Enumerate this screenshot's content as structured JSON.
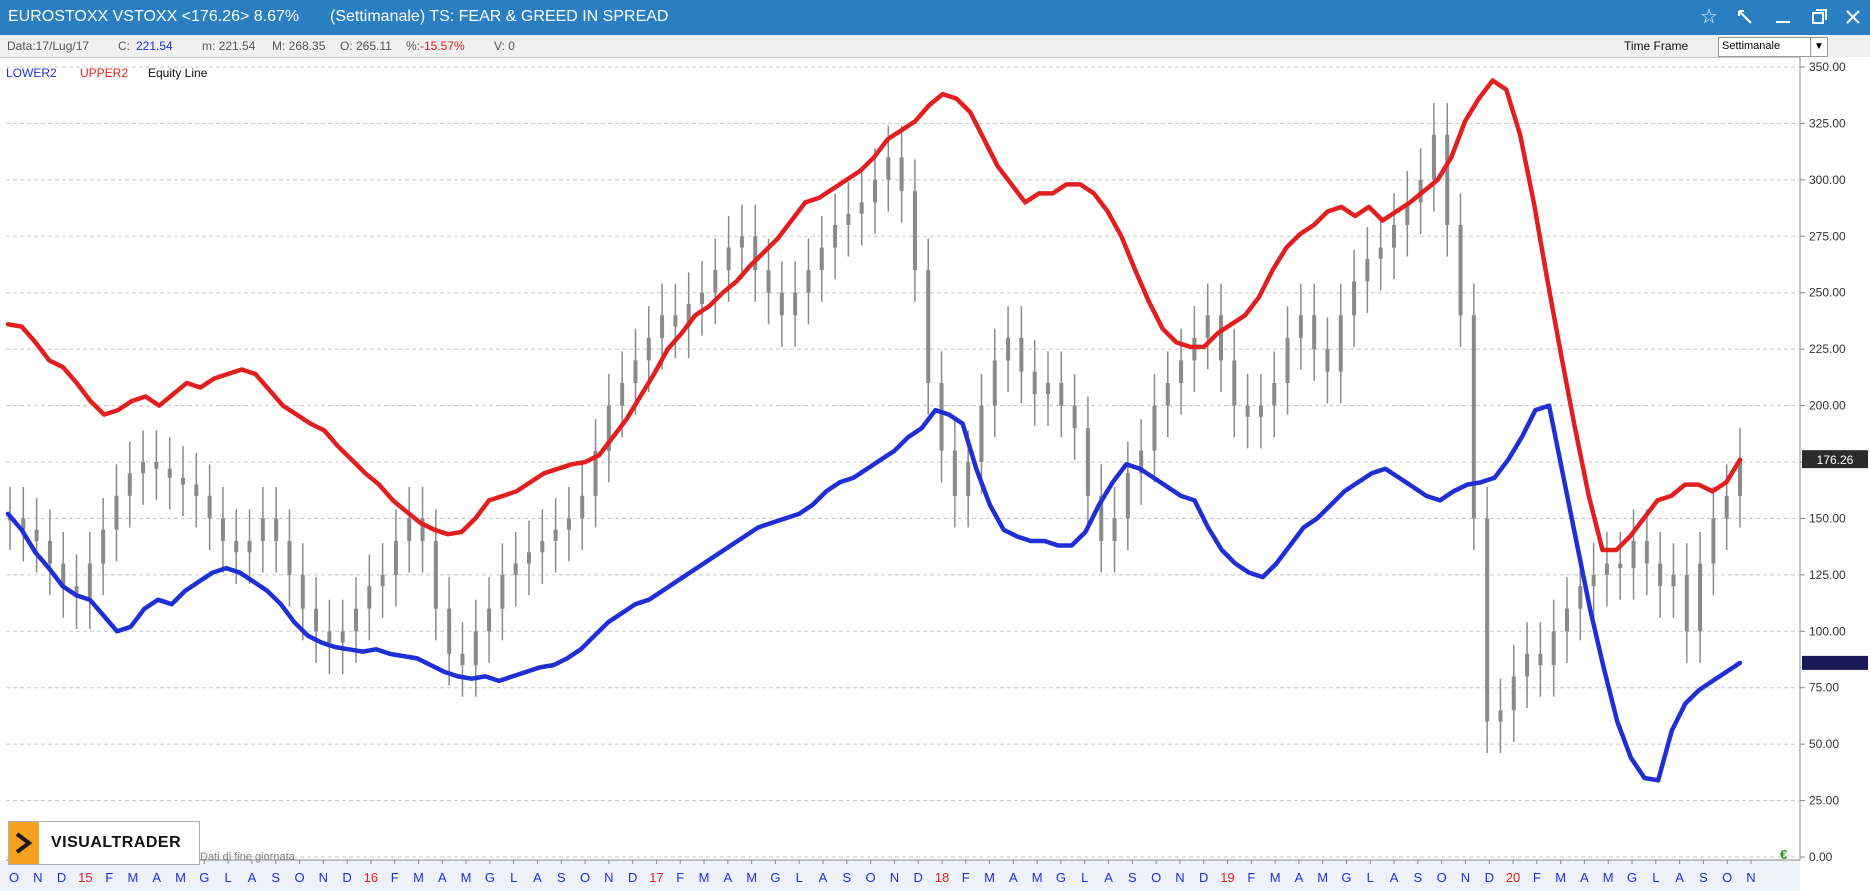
{
  "window": {
    "symbol_text": "EUROSTOXX VSTOXX <176.26> 8.67%",
    "subtitle": "(Settimanale) TS: FEAR & GREED IN SPREAD"
  },
  "infobar": {
    "date": "Data:17/Lug/17",
    "close_label": "C:",
    "close_value": "221.54",
    "min": "m: 221.54",
    "max": "M: 268.35",
    "open": "O: 265.11",
    "pct_label": "%:",
    "pct_value": "-15.57%",
    "vol": "V: 0",
    "timeframe_label": "Time Frame",
    "timeframe_value": "Settimanale"
  },
  "legend": {
    "lower": "LOWER2",
    "upper": "UPPER2",
    "equity": "Equity Line"
  },
  "footer": {
    "brand": "VISUALTRADER",
    "note": "Dati di fine giornata",
    "currency": "€"
  },
  "colors": {
    "lower": "#1f2fd6",
    "upper": "#e21f1f",
    "price": "#8a8a8a",
    "titlebar": "#2a7ec2"
  },
  "chart_data": {
    "type": "line",
    "ylim": [
      0,
      350
    ],
    "y_ticks": [
      "350.00",
      "325.00",
      "300.00",
      "275.00",
      "250.00",
      "225.00",
      "200.00",
      "175.00",
      "150.00",
      "125.00",
      "100.00",
      "75.00",
      "50.00",
      "25.00",
      "0.00"
    ],
    "x_tick_labels": [
      "O",
      "N",
      "D",
      "15",
      "F",
      "M",
      "A",
      "M",
      "G",
      "L",
      "A",
      "S",
      "O",
      "N",
      "D",
      "16",
      "F",
      "M",
      "A",
      "M",
      "G",
      "L",
      "A",
      "S",
      "O",
      "N",
      "D",
      "17",
      "F",
      "M",
      "A",
      "M",
      "G",
      "L",
      "A",
      "S",
      "O",
      "N",
      "D",
      "18",
      "F",
      "M",
      "A",
      "M",
      "G",
      "L",
      "A",
      "S",
      "O",
      "N",
      "D",
      "19",
      "F",
      "M",
      "A",
      "M",
      "G",
      "L",
      "A",
      "S",
      "O",
      "N",
      "D",
      "20",
      "F",
      "M",
      "A",
      "M",
      "G",
      "L",
      "A",
      "S",
      "O",
      "N"
    ],
    "last_price": "176.26",
    "series": [
      {
        "name": "UPPER2",
        "values": [
          236,
          235,
          228,
          220,
          217,
          210,
          202,
          196,
          198,
          202,
          204,
          200,
          205,
          210,
          208,
          212,
          214,
          216,
          214,
          207,
          200,
          196,
          192,
          189,
          182,
          176,
          170,
          165,
          158,
          153,
          148,
          145,
          143,
          144,
          150,
          158,
          160,
          162,
          166,
          170,
          172,
          174,
          175,
          178,
          186,
          194,
          204,
          214,
          225,
          232,
          240,
          244,
          250,
          255,
          262,
          268,
          274,
          282,
          290,
          292,
          296,
          300,
          304,
          310,
          318,
          322,
          326,
          333,
          338,
          336,
          330,
          318,
          306,
          298,
          290,
          294,
          294,
          298,
          298,
          294,
          286,
          275,
          260,
          246,
          234,
          228,
          226,
          226,
          232,
          236,
          240,
          248,
          260,
          270,
          276,
          280,
          286,
          288,
          284,
          288,
          282,
          286,
          290,
          295,
          300,
          310,
          326,
          336,
          344,
          340,
          320,
          290,
          255,
          222,
          190,
          160,
          136,
          136,
          142,
          150,
          158,
          160,
          165,
          165,
          162,
          166,
          176
        ]
      },
      {
        "name": "LOWER2",
        "values": [
          152,
          145,
          135,
          128,
          120,
          116,
          114,
          107,
          100,
          102,
          110,
          114,
          112,
          118,
          122,
          126,
          128,
          126,
          122,
          118,
          112,
          104,
          98,
          95,
          93,
          92,
          91,
          92,
          90,
          89,
          88,
          85,
          82,
          80,
          79,
          80,
          78,
          80,
          82,
          84,
          85,
          88,
          92,
          98,
          104,
          108,
          112,
          114,
          118,
          122,
          126,
          130,
          134,
          138,
          142,
          146,
          148,
          150,
          152,
          156,
          162,
          166,
          168,
          172,
          176,
          180,
          186,
          190,
          198,
          196,
          192,
          172,
          156,
          145,
          142,
          140,
          140,
          138,
          138,
          144,
          156,
          166,
          174,
          172,
          168,
          164,
          160,
          158,
          146,
          136,
          130,
          126,
          124,
          130,
          138,
          146,
          150,
          156,
          162,
          166,
          170,
          172,
          168,
          164,
          160,
          158,
          162,
          165,
          166,
          168,
          176,
          186,
          198,
          200,
          170,
          140,
          110,
          84,
          60,
          44,
          35,
          34,
          56,
          68,
          74,
          78,
          82,
          86
        ]
      },
      {
        "name": "Equity Line",
        "values": []
      }
    ],
    "price_candles": {
      "close": [
        150,
        145,
        140,
        130,
        120,
        115,
        130,
        145,
        160,
        170,
        175,
        172,
        168,
        165,
        160,
        150,
        140,
        135,
        140,
        150,
        140,
        125,
        110,
        100,
        95,
        100,
        110,
        120,
        125,
        140,
        150,
        140,
        110,
        90,
        85,
        100,
        110,
        125,
        130,
        135,
        140,
        145,
        150,
        160,
        180,
        200,
        210,
        220,
        230,
        240,
        235,
        245,
        250,
        260,
        270,
        275,
        260,
        250,
        240,
        250,
        260,
        270,
        280,
        285,
        290,
        300,
        310,
        295,
        260,
        210,
        180,
        160,
        175,
        200,
        220,
        230,
        215,
        205,
        210,
        200,
        190,
        160,
        140,
        150,
        170,
        180,
        200,
        210,
        220,
        230,
        240,
        220,
        200,
        195,
        200,
        210,
        230,
        240,
        225,
        215,
        240,
        255,
        265,
        270,
        280,
        290,
        300,
        320,
        280,
        240,
        150,
        60,
        65,
        80,
        90,
        85,
        100,
        110,
        120,
        125,
        130,
        128,
        140,
        130,
        120,
        125,
        100,
        130,
        150,
        160,
        176
      ]
    }
  }
}
